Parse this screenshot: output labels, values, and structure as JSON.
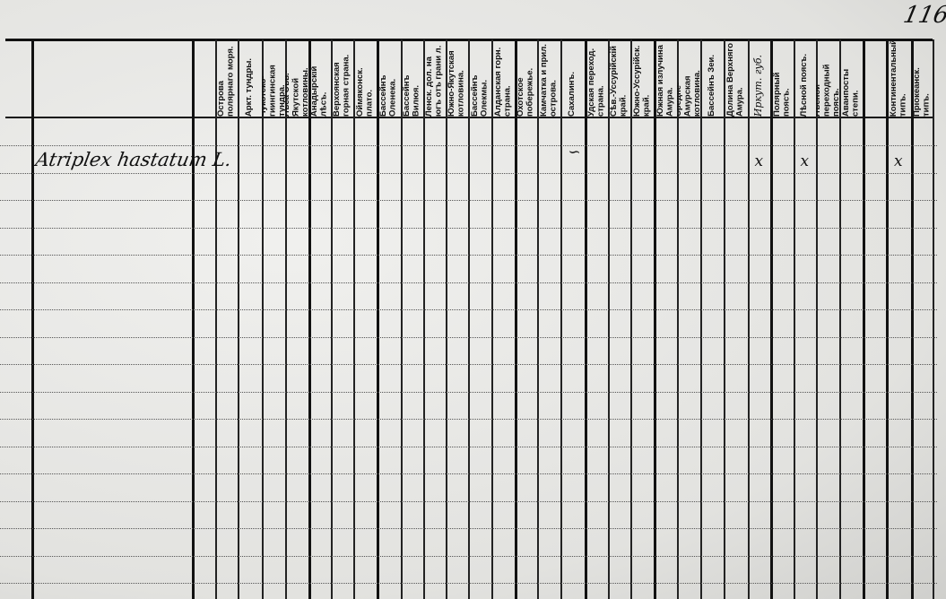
{
  "page_number": "116",
  "columns": [
    {
      "label": ""
    },
    {
      "label": "Острова полярнаго моря."
    },
    {
      "label": "Аркт. тундры."
    },
    {
      "label": "Чукотско-гиингинская тундра."
    },
    {
      "label": "Лѣса Сѣв.-Якутской котловины."
    },
    {
      "label": "Анадырскій лѣсъ."
    },
    {
      "label": "Верхоянская горная страна."
    },
    {
      "label": "Оймяконск. плато."
    },
    {
      "label": "Бассейнъ Оленека."
    },
    {
      "label": "Бассейнъ Вилюя."
    },
    {
      "label": "Ленск. дол. на югъ отъ грани л."
    },
    {
      "label": "Южно-Якутская котловина."
    },
    {
      "label": "Бассейнъ Олекмы."
    },
    {
      "label": "Алданская горн. страна."
    },
    {
      "label": "Охотское побережье."
    },
    {
      "label": "Камчатка и прил. острова."
    },
    {
      "label": "Сахалинъ."
    },
    {
      "label": "Удская переход. страна."
    },
    {
      "label": "Сѣв.-Уссурійскій край."
    },
    {
      "label": "Южно-Уссурійск. край."
    },
    {
      "label": "Южная излучина Амура."
    },
    {
      "label": "Средне-Амурская котловина."
    },
    {
      "label": "Бассейнъ Зеи."
    },
    {
      "label": "Долина Верхняго Амура."
    },
    {
      "label": "Иркут. губ.",
      "handwritten": true
    },
    {
      "label": "Полярный поясъ."
    },
    {
      "label": "Лѣсной поясъ."
    },
    {
      "label": "Лѣсной переходный поясъ."
    },
    {
      "label": "Аванпосты степи."
    },
    {
      "label": ""
    },
    {
      "label": "Континентальный типъ."
    },
    {
      "label": "Пріокеанск. типъ."
    }
  ],
  "rows": [
    {
      "species": "Atriplex hastatum L.",
      "marks": [
        {
          "column": "Сахалинъ.",
          "symbol": "∽"
        },
        {
          "column": "Иркут. губ.",
          "symbol": "x"
        },
        {
          "column": "Лѣсной поясъ.",
          "symbol": "x"
        },
        {
          "column": "Континентальный типъ.",
          "symbol": "x"
        }
      ]
    }
  ]
}
